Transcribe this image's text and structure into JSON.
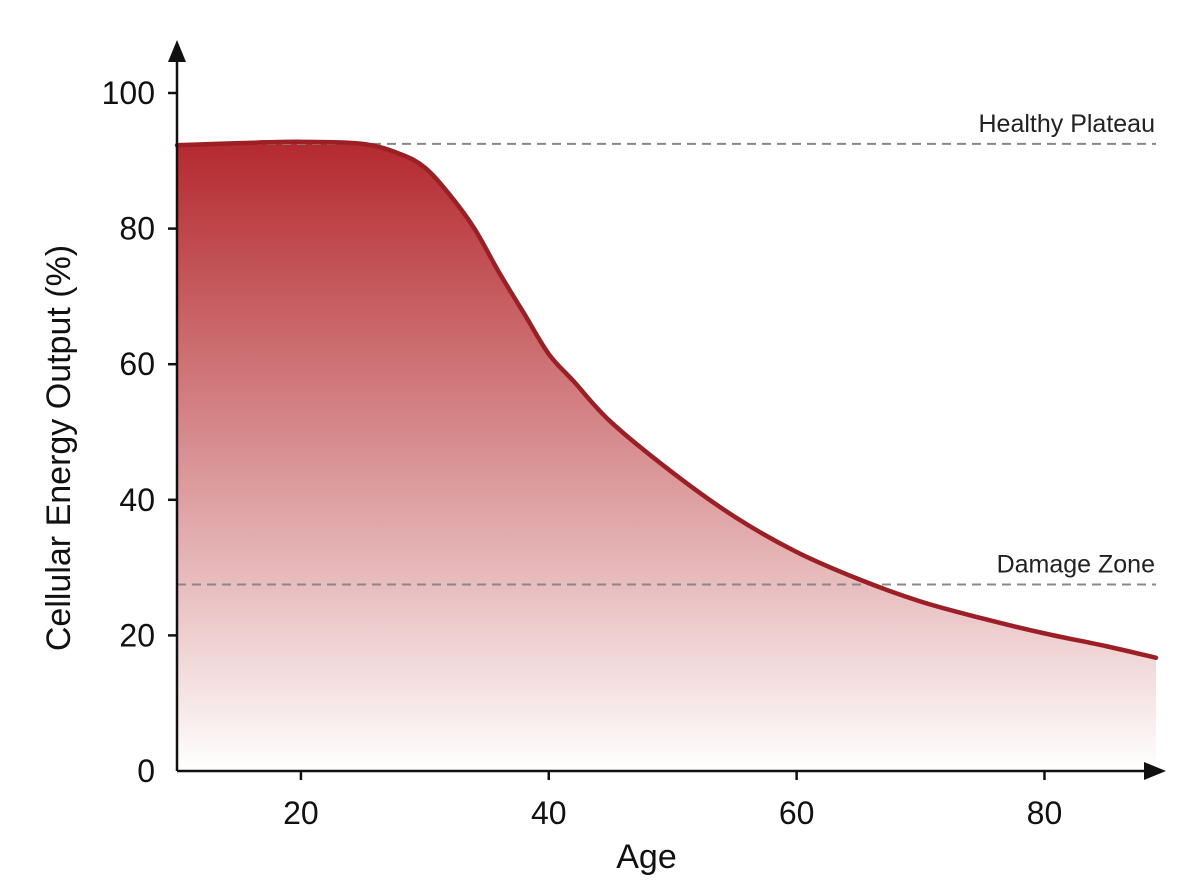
{
  "chart_data": {
    "type": "area",
    "title": "",
    "xlabel": "Age",
    "ylabel": "Cellular Energy Output (%)",
    "xlim": [
      10,
      89
    ],
    "ylim": [
      0,
      100
    ],
    "x_ticks": [
      20,
      40,
      60,
      80
    ],
    "y_ticks": [
      0,
      20,
      40,
      60,
      80,
      100
    ],
    "grid": false,
    "legend": "none",
    "colors": {
      "line": "#9b1f24",
      "fill_top": "#b01e23",
      "fill_bottom": "#ffffff",
      "reference": "#888888",
      "axis": "#111111"
    },
    "series": [
      {
        "x": [
          10,
          15,
          20,
          25,
          28,
          30,
          32,
          34,
          36,
          38,
          40,
          42,
          45,
          50,
          55,
          60,
          65,
          70,
          75,
          80,
          85,
          89
        ],
        "values": [
          92.3,
          92.6,
          92.8,
          92.5,
          91.0,
          89.0,
          85.0,
          80.0,
          73.5,
          67.5,
          61.5,
          57.5,
          51.5,
          44.0,
          37.5,
          32.3,
          28.3,
          25.0,
          22.5,
          20.3,
          18.4,
          16.7
        ]
      }
    ],
    "reference_lines": [
      {
        "label": "Healthy Plateau",
        "y": 92.5
      },
      {
        "label": "Damage Zone",
        "y": 27.5
      }
    ]
  }
}
